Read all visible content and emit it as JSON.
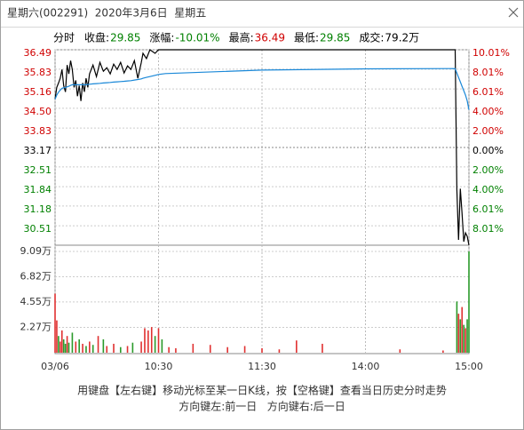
{
  "window": {
    "title": "星期六(002291)  2020年3月6日  星期五"
  },
  "header": [
    {
      "label": "分时"
    },
    {
      "label": "收盘:",
      "value": "29.85",
      "color": "#008000"
    },
    {
      "label": "涨幅:",
      "value": "-10.01%",
      "color": "#008000"
    },
    {
      "label": "最高:",
      "value": "36.49",
      "color": "#d00000"
    },
    {
      "label": "最低:",
      "value": "29.85",
      "color": "#008000"
    },
    {
      "label": "成交:",
      "value": "79.2万",
      "color": "#000000"
    }
  ],
  "chart_data": [
    {
      "type": "line",
      "x": [
        0,
        1,
        2,
        3,
        4,
        5,
        6,
        7,
        8,
        9,
        10,
        11,
        12,
        13,
        14,
        15,
        16,
        17,
        18,
        19,
        20,
        22,
        24,
        26,
        28,
        30,
        32,
        34,
        36,
        38,
        40,
        42,
        44,
        46,
        48,
        50,
        51,
        53,
        55,
        58,
        60,
        64,
        120,
        180,
        232,
        233,
        234,
        235,
        236,
        237,
        238,
        239,
        240
      ],
      "series": [
        {
          "color": "#000000",
          "values": [
            34.81,
            35.21,
            35.36,
            35.52,
            35.82,
            35.27,
            35.06,
            35.97,
            35.67,
            36.12,
            35.82,
            35.21,
            35.45,
            34.91,
            35.27,
            34.75,
            35.36,
            35.06,
            35.52,
            35.21,
            35.67,
            35.97,
            35.58,
            36.06,
            35.76,
            35.88,
            35.67,
            36.0,
            35.82,
            36.06,
            35.7,
            35.94,
            35.82,
            36.12,
            35.52,
            36.06,
            36.37,
            36.19,
            36.49,
            36.37,
            36.49,
            36.49,
            36.49,
            36.49,
            36.49,
            31.74,
            30.03,
            31.77,
            30.95,
            29.97,
            30.27,
            30.15,
            29.85
          ]
        },
        {
          "color": "#1a88d8",
          "values": [
            34.81,
            34.95,
            35.05,
            35.12,
            35.18,
            35.2,
            35.2,
            35.23,
            35.25,
            35.28,
            35.3,
            35.3,
            35.3,
            35.3,
            35.3,
            35.3,
            35.3,
            35.3,
            35.3,
            35.31,
            35.32,
            35.33,
            35.34,
            35.35,
            35.36,
            35.37,
            35.38,
            35.39,
            35.4,
            35.41,
            35.42,
            35.43,
            35.44,
            35.46,
            35.48,
            35.5,
            35.52,
            35.55,
            35.58,
            35.62,
            35.65,
            35.68,
            35.8,
            35.84,
            35.85,
            35.7,
            35.55,
            35.4,
            35.25,
            35.1,
            34.95,
            34.75,
            34.45
          ]
        }
      ],
      "xlim": [
        0,
        240
      ],
      "ylim": [
        29.85,
        36.49
      ],
      "yticks": [
        36.49,
        35.83,
        35.16,
        {
          "value": 34.5,
          "label": "34.50"
        },
        33.83,
        33.17,
        32.51,
        31.84,
        31.18,
        30.51
      ],
      "y2lim": [
        -10.01,
        10.01
      ],
      "y2ticks": [
        {
          "value": 10.01,
          "label": "10.01%"
        },
        {
          "value": 8.01,
          "label": "8.01%"
        },
        {
          "value": 6.01,
          "label": "6.01%"
        },
        {
          "value": 4.0,
          "label": "4.00%"
        },
        {
          "value": 2.0,
          "label": "2.00%"
        },
        {
          "value": 0,
          "label": "0.00%"
        },
        {
          "value": -2.0,
          "label": "2.00%"
        },
        {
          "value": -4.0,
          "label": "4.00%"
        },
        {
          "value": -6.01,
          "label": "6.01%"
        },
        {
          "value": -8.01,
          "label": "8.01%"
        }
      ],
      "grid": true
    },
    {
      "type": "bar",
      "x": [
        0,
        1,
        2,
        3,
        4,
        5,
        6,
        7,
        8,
        10,
        12,
        14,
        16,
        18,
        20,
        22,
        25,
        28,
        30,
        34,
        38,
        42,
        45,
        50,
        52,
        54,
        56,
        58,
        60,
        62,
        66,
        70,
        80,
        90,
        100,
        110,
        120,
        130,
        140,
        155,
        200,
        225,
        233,
        234,
        235,
        236,
        237,
        238,
        239,
        240
      ],
      "values": [
        5.3,
        2.9,
        1.5,
        1.0,
        2.0,
        1.2,
        0.8,
        1.5,
        0.9,
        1.8,
        1.0,
        1.2,
        0.8,
        0.6,
        1.0,
        0.7,
        1.5,
        1.2,
        0.6,
        0.8,
        0.5,
        0.6,
        0.9,
        1.0,
        2.2,
        2.0,
        2.3,
        1.5,
        2.2,
        1.2,
        0.5,
        0.4,
        0.8,
        0.7,
        0.5,
        0.6,
        0.4,
        0.3,
        1.1,
        0.8,
        0.3,
        0.2,
        4.6,
        3.5,
        3.0,
        4.1,
        2.5,
        2.2,
        3.0,
        9.09
      ],
      "colors": [
        "#e03030",
        "#e03030",
        "#2a9a2a",
        "#e03030",
        "#e03030",
        "#2a9a2a",
        "#2a9a2a",
        "#e03030",
        "#2a9a2a",
        "#2a9a2a",
        "#e03030",
        "#2a9a2a",
        "#e03030",
        "#2a9a2a",
        "#e03030",
        "#2a9a2a",
        "#e03030",
        "#2a9a2a",
        "#e03030",
        "#e03030",
        "#2a9a2a",
        "#e03030",
        "#2a9a2a",
        "#e03030",
        "#e03030",
        "#e03030",
        "#e03030",
        "#2a9a2a",
        "#e03030",
        "#2a9a2a",
        "#e03030",
        "#e03030",
        "#e03030",
        "#e03030",
        "#e03030",
        "#e03030",
        "#e03030",
        "#e03030",
        "#e03030",
        "#e03030",
        "#e03030",
        "#e03030",
        "#2a9a2a",
        "#e03030",
        "#2a9a2a",
        "#e03030",
        "#2a9a2a",
        "#e03030",
        "#2a9a2a",
        "#2a9a2a"
      ],
      "xlim": [
        0,
        240
      ],
      "xticks": [
        {
          "value": 0,
          "label": "03/06"
        },
        {
          "value": 60,
          "label": "10:30"
        },
        {
          "value": 120,
          "label": "11:30"
        },
        {
          "value": 180,
          "label": "14:00"
        },
        {
          "value": 240,
          "label": "15:00"
        }
      ],
      "ylim": [
        0,
        9.09
      ],
      "yticks": [
        {
          "value": 9.09,
          "label": "9.09万"
        },
        {
          "value": 6.82,
          "label": "6.82万"
        },
        {
          "value": 4.55,
          "label": "4.55万"
        },
        {
          "value": 2.27,
          "label": "2.27万"
        }
      ],
      "grid": true
    }
  ],
  "footer": [
    "用键盘【左右键】移动光标至某一日K线，按【空格键】查看当日历史分时走势",
    "方向键左:前一日   方向键右:后一日"
  ]
}
